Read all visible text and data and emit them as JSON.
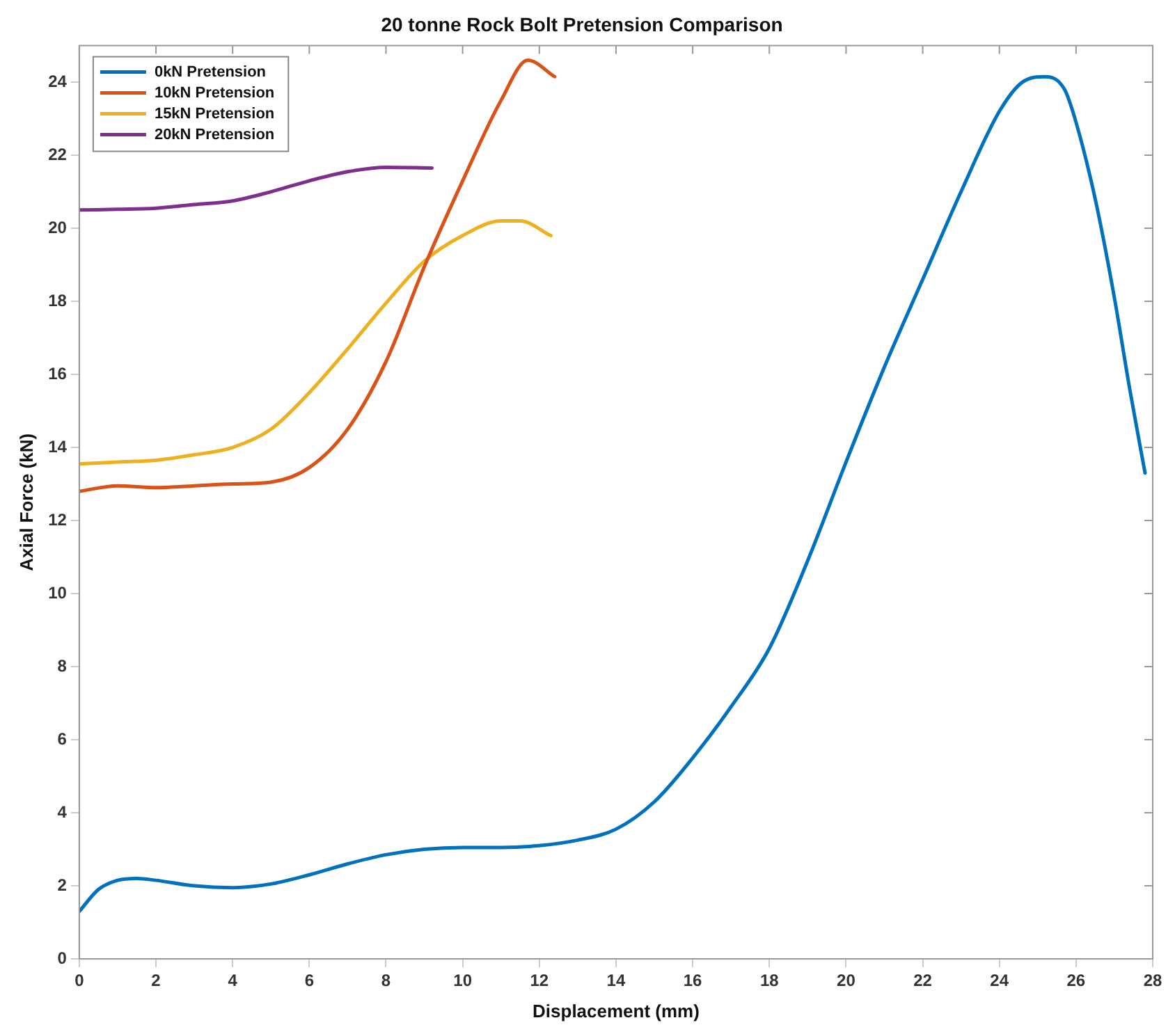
{
  "chart_data": {
    "type": "line",
    "title": "20 tonne Rock Bolt Pretension Comparison",
    "xlabel": "Displacement (mm)",
    "ylabel": "Axial Force (kN)",
    "xlim": [
      0,
      28
    ],
    "ylim": [
      0,
      25
    ],
    "xticks": [
      0,
      2,
      4,
      6,
      8,
      10,
      12,
      14,
      16,
      18,
      20,
      22,
      24,
      26,
      28
    ],
    "yticks": [
      0,
      2,
      4,
      6,
      8,
      10,
      12,
      14,
      16,
      18,
      20,
      22,
      24
    ],
    "grid": false,
    "legend": "top left",
    "marker": "none",
    "line_style": "solid",
    "series": [
      {
        "name": "0kN Pretension",
        "color": "#0072bd",
        "x": [
          0,
          0.5,
          1,
          1.5,
          2,
          3,
          4,
          5,
          6,
          7,
          8,
          9,
          10,
          11,
          12,
          13,
          14,
          15,
          16,
          17,
          18,
          19,
          20,
          21,
          22,
          23,
          24,
          24.6,
          25.2,
          25.7,
          26,
          26.5,
          27,
          27.4,
          27.8
        ],
        "values": [
          1.3,
          1.9,
          2.15,
          2.2,
          2.15,
          2.0,
          1.95,
          2.05,
          2.3,
          2.6,
          2.85,
          3.0,
          3.05,
          3.05,
          3.1,
          3.25,
          3.55,
          4.3,
          5.5,
          6.9,
          8.5,
          10.9,
          13.6,
          16.2,
          18.6,
          21.0,
          23.2,
          24.0,
          24.15,
          23.8,
          22.9,
          20.8,
          18.1,
          15.6,
          13.3
        ]
      },
      {
        "name": "10kN Pretension",
        "color": "#d95319",
        "x": [
          0,
          1,
          2,
          3,
          4,
          5,
          6,
          7,
          8,
          9,
          10,
          11,
          11.7,
          12.4
        ],
        "values": [
          12.8,
          12.95,
          12.9,
          12.95,
          13.0,
          13.05,
          13.45,
          14.5,
          16.35,
          18.95,
          21.3,
          23.5,
          24.6,
          24.15
        ]
      },
      {
        "name": "15kN Pretension",
        "color": "#edb120",
        "x": [
          0,
          1,
          2,
          3,
          4,
          5,
          6,
          7,
          8,
          9,
          10,
          11,
          11.5,
          12.3
        ],
        "values": [
          13.55,
          13.6,
          13.65,
          13.8,
          14.0,
          14.5,
          15.5,
          16.7,
          17.95,
          19.1,
          19.8,
          20.2,
          20.2,
          19.8
        ]
      },
      {
        "name": "20kN Pretension",
        "color": "#7e2f8e",
        "x": [
          0,
          1,
          2,
          3,
          4,
          5,
          6,
          7,
          8,
          9.2
        ],
        "values": [
          20.5,
          20.52,
          20.55,
          20.65,
          20.75,
          21.0,
          21.3,
          21.55,
          21.67,
          21.65
        ]
      }
    ]
  }
}
